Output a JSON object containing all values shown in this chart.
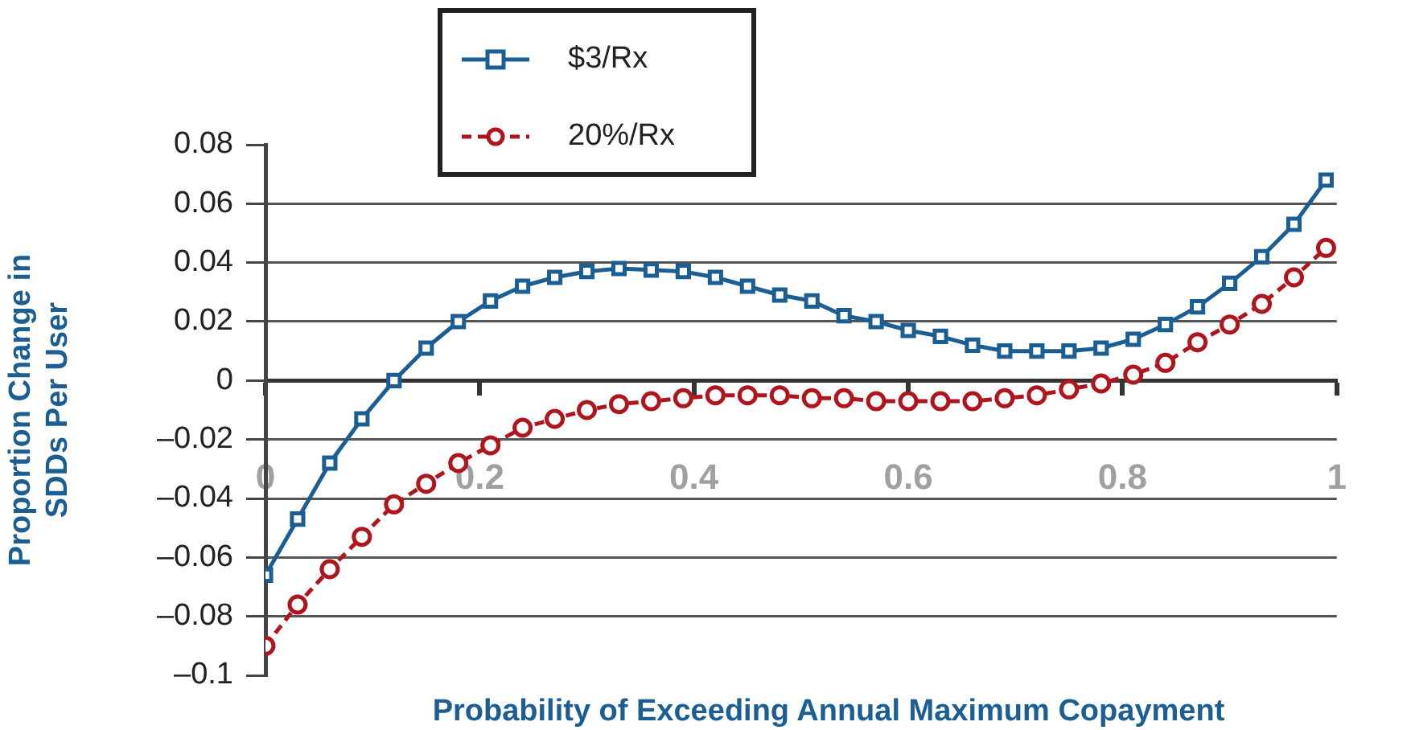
{
  "chart_data": {
    "type": "line",
    "xlabel": "Probability of Exceeding Annual Maximum Copayment",
    "ylabel": "Proportion Change in SDDs Per User",
    "x": [
      0,
      0.03,
      0.06,
      0.09,
      0.12,
      0.15,
      0.18,
      0.21,
      0.24,
      0.27,
      0.3,
      0.33,
      0.36,
      0.39,
      0.42,
      0.45,
      0.48,
      0.51,
      0.54,
      0.57,
      0.6,
      0.63,
      0.66,
      0.69,
      0.72,
      0.75,
      0.78,
      0.81,
      0.84,
      0.87,
      0.9,
      0.93,
      0.96,
      0.99
    ],
    "series": [
      {
        "name": "$3/Rx",
        "color": "#1a5e94",
        "marker": "square",
        "line_style": "solid",
        "values": [
          -0.066,
          -0.047,
          -0.028,
          -0.013,
          0.0,
          0.011,
          0.02,
          0.027,
          0.032,
          0.035,
          0.037,
          0.038,
          0.0375,
          0.037,
          0.035,
          0.032,
          0.029,
          0.027,
          0.022,
          0.02,
          0.017,
          0.015,
          0.012,
          0.01,
          0.01,
          0.01,
          0.011,
          0.014,
          0.019,
          0.025,
          0.033,
          0.042,
          0.053,
          0.068
        ]
      },
      {
        "name": "20%/Rx",
        "color": "#b0151e",
        "marker": "circle",
        "line_style": "dashed",
        "values": [
          -0.09,
          -0.076,
          -0.064,
          -0.053,
          -0.042,
          -0.035,
          -0.028,
          -0.022,
          -0.016,
          -0.013,
          -0.01,
          -0.008,
          -0.007,
          -0.006,
          -0.005,
          -0.005,
          -0.005,
          -0.006,
          -0.006,
          -0.007,
          -0.007,
          -0.007,
          -0.007,
          -0.006,
          -0.005,
          -0.003,
          -0.001,
          0.002,
          0.006,
          0.013,
          0.019,
          0.026,
          0.035,
          0.045
        ]
      }
    ],
    "xlim": [
      0,
      1
    ],
    "xticks": [
      0,
      0.2,
      0.4,
      0.6,
      0.8,
      1
    ],
    "ylim": [
      -0.1,
      0.08
    ],
    "yticks": [
      {
        "value": -0.1,
        "label": "–0.1"
      },
      {
        "value": -0.08,
        "label": "–0.08"
      },
      {
        "value": -0.06,
        "label": "–0.06"
      },
      {
        "value": -0.04,
        "label": "–0.04"
      },
      {
        "value": -0.02,
        "label": "–0.02"
      },
      0,
      0.02,
      0.04,
      0.06,
      0.08
    ],
    "grid": "y",
    "legend": "top"
  }
}
